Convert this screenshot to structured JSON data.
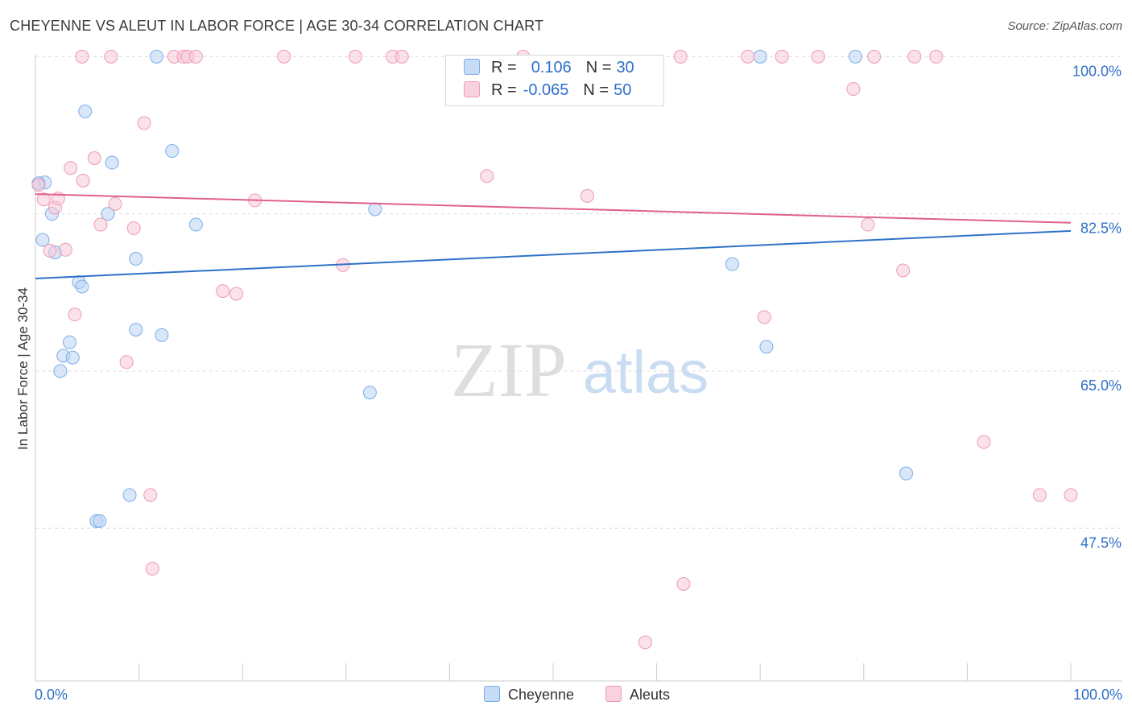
{
  "chart_data": {
    "type": "scatter",
    "title": "CHEYENNE VS ALEUT IN LABOR FORCE | AGE 30-34 CORRELATION CHART",
    "source": "Source: ZipAtlas.com",
    "xlabel": "",
    "ylabel": "In Labor Force | Age 30-34",
    "xlim": [
      0,
      100
    ],
    "ylim": [
      30.5,
      102
    ],
    "x_tick_labels": [
      "0.0%",
      "100.0%"
    ],
    "y_ticks": [
      {
        "value": 100,
        "label": "100.0%"
      },
      {
        "value": 82.5,
        "label": "82.5%"
      },
      {
        "value": 65,
        "label": "65.0%"
      },
      {
        "value": 47.5,
        "label": "47.5%"
      }
    ],
    "grid": "horizontal dashed",
    "legend_position": "top-center",
    "watermark": {
      "zip": "ZIP",
      "atlas": "atlas"
    },
    "series": [
      {
        "name": "Cheyenne",
        "color": "#7aaee8",
        "fill": "#b9d3f3",
        "line_color": "#2f72c8",
        "R": "0.106",
        "N": "30",
        "trend": [
          [
            0,
            75.3
          ],
          [
            100,
            80.6
          ]
        ],
        "points": [
          [
            0.9,
            86.0
          ],
          [
            1.6,
            82.5
          ],
          [
            0.7,
            79.6
          ],
          [
            1.9,
            78.2
          ],
          [
            4.8,
            93.9
          ],
          [
            7.4,
            88.2
          ],
          [
            11.7,
            100
          ],
          [
            13.2,
            89.5
          ],
          [
            7.0,
            82.5
          ],
          [
            15.5,
            81.3
          ],
          [
            9.7,
            77.5
          ],
          [
            4.2,
            74.9
          ],
          [
            4.5,
            74.4
          ],
          [
            9.7,
            69.6
          ],
          [
            12.2,
            69.0
          ],
          [
            3.3,
            68.2
          ],
          [
            2.7,
            66.7
          ],
          [
            3.6,
            66.5
          ],
          [
            2.4,
            65.0
          ],
          [
            32.8,
            83.0
          ],
          [
            32.3,
            62.6
          ],
          [
            67.3,
            76.9
          ],
          [
            70.0,
            100
          ],
          [
            70.6,
            67.7
          ],
          [
            79.2,
            100
          ],
          [
            84.1,
            53.6
          ],
          [
            9.1,
            51.2
          ],
          [
            5.9,
            48.3
          ],
          [
            6.2,
            48.3
          ],
          [
            0.3,
            85.9
          ]
        ]
      },
      {
        "name": "Aleuts",
        "color": "#ee9ab5",
        "fill": "#f8c9d8",
        "line_color": "#e0608f",
        "R": "-0.065",
        "N": "50",
        "trend": [
          [
            0,
            84.7
          ],
          [
            100,
            81.5
          ]
        ],
        "points": [
          [
            0.8,
            84.1
          ],
          [
            1.9,
            83.2
          ],
          [
            2.2,
            84.2
          ],
          [
            1.4,
            78.4
          ],
          [
            2.9,
            78.5
          ],
          [
            3.4,
            87.6
          ],
          [
            4.6,
            86.2
          ],
          [
            5.7,
            88.7
          ],
          [
            6.3,
            81.3
          ],
          [
            7.7,
            83.6
          ],
          [
            9.5,
            80.9
          ],
          [
            10.5,
            92.6
          ],
          [
            8.8,
            66.0
          ],
          [
            11.1,
            51.2
          ],
          [
            11.3,
            43.0
          ],
          [
            3.8,
            71.3
          ],
          [
            18.1,
            73.9
          ],
          [
            19.4,
            73.6
          ],
          [
            21.2,
            84.0
          ],
          [
            29.7,
            76.8
          ],
          [
            43.6,
            86.7
          ],
          [
            53.3,
            84.5
          ],
          [
            58.9,
            34.8
          ],
          [
            62.6,
            41.3
          ],
          [
            70.4,
            71.0
          ],
          [
            79.0,
            96.4
          ],
          [
            80.4,
            81.3
          ],
          [
            83.8,
            76.2
          ],
          [
            91.6,
            57.1
          ],
          [
            97.0,
            51.2
          ],
          [
            100.0,
            51.2
          ],
          [
            4.5,
            100
          ],
          [
            7.3,
            100
          ],
          [
            13.4,
            100
          ],
          [
            14.3,
            100
          ],
          [
            14.7,
            100
          ],
          [
            15.5,
            100
          ],
          [
            24.0,
            100
          ],
          [
            30.9,
            100
          ],
          [
            34.5,
            100
          ],
          [
            35.4,
            100
          ],
          [
            47.1,
            100
          ],
          [
            62.3,
            100
          ],
          [
            68.8,
            100
          ],
          [
            72.1,
            100
          ],
          [
            75.6,
            100
          ],
          [
            81.0,
            100
          ],
          [
            84.9,
            100
          ],
          [
            87.0,
            100
          ],
          [
            0.3,
            85.7
          ]
        ]
      }
    ]
  }
}
